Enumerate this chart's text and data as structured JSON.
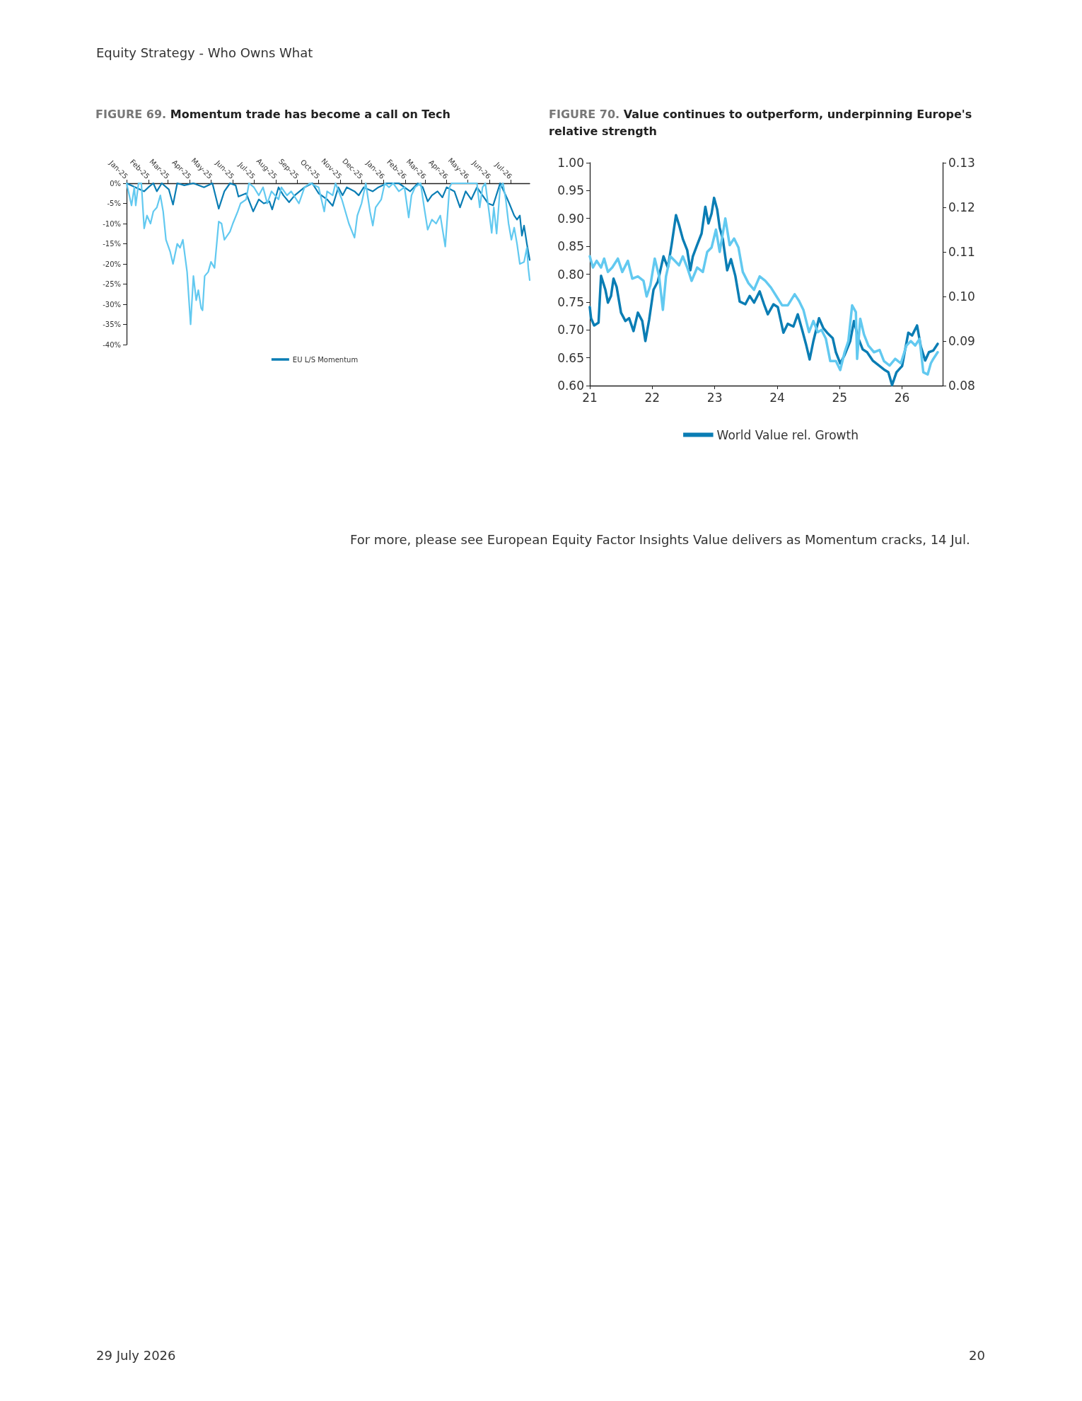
{
  "chart_data": [
    {
      "type": "line",
      "title": "FIGURE 69. Momentum trade has become a call on Tech",
      "annotations": [
        "Equity Strategy - Who Owns What"
      ],
      "xlim": [
        "2025-01-01",
        "2026-07-28"
      ],
      "xticks": [
        {
          "value": "2025-01-01",
          "label": "Jan-25"
        },
        {
          "value": "2025-02-01",
          "label": "Feb-25"
        },
        {
          "value": "2025-03-01",
          "label": "Mar-25"
        },
        {
          "value": "2025-04-01",
          "label": "Apr-25"
        },
        {
          "value": "2025-05-01",
          "label": "May-25"
        },
        {
          "value": "2025-06-01",
          "label": "Jun-25"
        },
        {
          "value": "2025-07-01",
          "label": "Jul-25"
        },
        {
          "value": "2025-08-01",
          "label": "Aug-25"
        },
        {
          "value": "2025-09-01",
          "label": "Sep-25"
        },
        {
          "value": "2025-10-01",
          "label": "Oct-25"
        },
        {
          "value": "2025-11-01",
          "label": "Nov-25"
        },
        {
          "value": "2025-12-01",
          "label": "Dec-25"
        },
        {
          "value": "2026-01-01",
          "label": "Jan-26"
        },
        {
          "value": "2026-02-01",
          "label": "Feb-26"
        },
        {
          "value": "2026-03-01",
          "label": "Mar-26"
        },
        {
          "value": "2026-04-01",
          "label": "Apr-26"
        },
        {
          "value": "2026-05-01",
          "label": "May-26"
        },
        {
          "value": "2026-06-01",
          "label": "Jun-26"
        },
        {
          "value": "2026-07-01",
          "label": "Jul-26"
        }
      ],
      "ylim": [
        -40,
        0
      ],
      "yticks": [
        {
          "value": -40,
          "label": "-40%"
        },
        {
          "value": -35,
          "label": "-35%"
        },
        {
          "value": -30,
          "label": "-30%"
        },
        {
          "value": -25,
          "label": "-25%"
        },
        {
          "value": -20,
          "label": "-20%"
        },
        {
          "value": -15,
          "label": "-15%"
        },
        {
          "value": -10,
          "label": "-10%"
        },
        {
          "value": -5,
          "label": "-5%"
        },
        {
          "value": 0,
          "label": "0%"
        }
      ],
      "grid": false,
      "legend": "bottom",
      "marker": "none",
      "line_style": "solid",
      "series": [
        {
          "name": "EU L/S Momentum",
          "color": "#0a7db4",
          "x": [
            "2025-01-01",
            "2025-01-26",
            "2025-02-01",
            "2025-02-08",
            "2025-02-13",
            "2025-02-20",
            "2025-03-02",
            "2025-03-08",
            "2025-03-14",
            "2025-03-24",
            "2025-04-06",
            "2025-04-21",
            "2025-05-03",
            "2025-05-12",
            "2025-05-20",
            "2025-05-28",
            "2025-06-05",
            "2025-06-09",
            "2025-06-20",
            "2025-06-30",
            "2025-07-08",
            "2025-07-15",
            "2025-07-23",
            "2025-07-27",
            "2025-08-05",
            "2025-08-12",
            "2025-08-20",
            "2025-08-28",
            "2025-09-11",
            "2025-09-22",
            "2025-10-01",
            "2025-10-13",
            "2025-10-21",
            "2025-10-29",
            "2025-11-04",
            "2025-11-10",
            "2025-11-21",
            "2025-11-27",
            "2025-12-04",
            "2025-12-17",
            "2025-12-25",
            "2026-01-06",
            "2026-01-23",
            "2026-02-08",
            "2026-02-19",
            "2026-02-26",
            "2026-03-05",
            "2026-03-11",
            "2026-03-19",
            "2026-03-26",
            "2026-04-01",
            "2026-04-12",
            "2026-04-20",
            "2026-04-28",
            "2026-05-06",
            "2026-05-14",
            "2026-05-22",
            "2026-05-30",
            "2026-06-06",
            "2026-06-16",
            "2026-06-24",
            "2026-06-29",
            "2026-07-06",
            "2026-07-10",
            "2026-07-14",
            "2026-07-17",
            "2026-07-20",
            "2026-07-24",
            "2026-07-28"
          ],
          "values": [
            0,
            -2,
            -1,
            0,
            -2,
            0,
            -1.5,
            -5.3,
            0,
            -0.5,
            0,
            -1,
            0,
            -6.3,
            -2,
            0,
            -0.5,
            -3.3,
            -2.5,
            -7,
            -4,
            -5,
            -4.5,
            -6.5,
            -1,
            -3,
            -4.7,
            -3,
            -1,
            0,
            -2.5,
            -4,
            -5.6,
            -1,
            -3,
            -1,
            -2,
            -3,
            -1,
            -2,
            -1,
            0,
            0,
            -2,
            0,
            -1,
            -4.5,
            -3,
            -2,
            -3.5,
            -1,
            -2,
            -6,
            -2,
            -4,
            -1,
            -3,
            -5,
            -5.5,
            0,
            -3,
            -5,
            -8,
            -9,
            -8,
            -13,
            -10.5,
            -15,
            -19
          ]
        },
        {
          "color": "#62c9f0",
          "x": [
            "2025-01-01",
            "2025-01-08",
            "2025-01-12",
            "2025-01-14",
            "2025-01-18",
            "2025-01-22",
            "2025-01-26",
            "2025-01-30",
            "2025-02-04",
            "2025-02-08",
            "2025-02-13",
            "2025-02-18",
            "2025-02-22",
            "2025-02-26",
            "2025-03-04",
            "2025-03-08",
            "2025-03-14",
            "2025-03-18",
            "2025-03-22",
            "2025-03-28",
            "2025-04-02",
            "2025-04-06",
            "2025-04-10",
            "2025-04-13",
            "2025-04-17",
            "2025-04-19",
            "2025-04-22",
            "2025-04-27",
            "2025-05-01",
            "2025-05-06",
            "2025-05-12",
            "2025-05-16",
            "2025-05-20",
            "2025-05-24",
            "2025-05-28",
            "2025-06-01",
            "2025-06-08",
            "2025-06-12",
            "2025-06-20",
            "2025-06-24",
            "2025-07-01",
            "2025-07-08",
            "2025-07-14",
            "2025-07-20",
            "2025-07-26",
            "2025-08-05",
            "2025-08-09",
            "2025-08-17",
            "2025-08-23",
            "2025-09-03",
            "2025-09-11",
            "2025-09-19",
            "2025-10-01",
            "2025-10-09",
            "2025-10-13",
            "2025-10-21",
            "2025-10-25",
            "2025-11-03",
            "2025-11-13",
            "2025-11-21",
            "2025-11-25",
            "2025-12-01",
            "2025-12-07",
            "2025-12-13",
            "2025-12-17",
            "2025-12-21",
            "2025-12-29",
            "2026-01-03",
            "2026-01-09",
            "2026-01-15",
            "2026-01-23",
            "2026-01-31",
            "2026-02-06",
            "2026-02-10",
            "2026-02-15",
            "2026-02-23",
            "2026-02-28",
            "2026-03-05",
            "2026-03-11",
            "2026-03-17",
            "2026-03-23",
            "2026-03-30",
            "2026-04-05",
            "2026-04-08",
            "2026-04-20",
            "2026-05-06",
            "2026-05-14",
            "2026-05-18",
            "2026-05-22",
            "2026-05-26",
            "2026-06-04",
            "2026-06-07",
            "2026-06-11",
            "2026-06-16",
            "2026-06-20",
            "2026-06-24",
            "2026-06-28",
            "2026-07-02",
            "2026-07-06",
            "2026-07-10",
            "2026-07-14",
            "2026-07-20",
            "2026-07-24",
            "2026-07-26",
            "2026-07-28"
          ],
          "values": [
            0,
            -5.5,
            -1,
            -5.5,
            0,
            0,
            -11.2,
            -8,
            -10,
            -7,
            -6,
            -3,
            -7,
            -14,
            -17,
            -20,
            -15,
            -16,
            -14,
            -22,
            -35,
            -23,
            -29,
            -26.5,
            -31,
            -31.5,
            -23,
            -22,
            -19.5,
            -21,
            -9.5,
            -10,
            -14,
            -13,
            -12,
            -10,
            -7,
            -5,
            -4,
            0,
            -1,
            -3,
            -1,
            -5,
            -2,
            -4,
            -1,
            -3,
            -2,
            -5,
            -1,
            0,
            -1,
            -7,
            -2,
            -3,
            0,
            -4,
            -10,
            -13.5,
            -8,
            -5,
            0,
            -7,
            -10.5,
            -6,
            -4,
            0,
            -1,
            0,
            -2,
            -1,
            -8.5,
            -3,
            -1,
            0,
            -6,
            -11.5,
            -9,
            -10,
            -8,
            -15.7,
            -1,
            0,
            0,
            0,
            0,
            -6,
            -1,
            0,
            -12.3,
            -6,
            -12.5,
            -1,
            0,
            -4,
            -10,
            -14,
            -11,
            -15,
            -20,
            -19.5,
            -16,
            -21,
            -24
          ]
        }
      ]
    },
    {
      "type": "line",
      "title": "FIGURE 70. Value continues to outperform, underpinning Europe's relative strength",
      "annotations": [
        "For more, please see European Equity Factor Insights Value delivers as Momentum cracks, 14 Jul.",
        "29 July 2026",
        "20"
      ],
      "xlim": [
        2021,
        2026.65
      ],
      "xticks": [
        {
          "value": 2021,
          "label": "21"
        },
        {
          "value": 2022,
          "label": "22"
        },
        {
          "value": 2023,
          "label": "23"
        },
        {
          "value": 2024,
          "label": "24"
        },
        {
          "value": 2025,
          "label": "25"
        },
        {
          "value": 2026,
          "label": "26"
        }
      ],
      "ylim": [
        0.6,
        1.0
      ],
      "yticks": [
        {
          "value": 0.6,
          "label": "0.60"
        },
        {
          "value": 0.65,
          "label": "0.65"
        },
        {
          "value": 0.7,
          "label": "0.70"
        },
        {
          "value": 0.75,
          "label": "0.75"
        },
        {
          "value": 0.8,
          "label": "0.80"
        },
        {
          "value": 0.85,
          "label": "0.85"
        },
        {
          "value": 0.9,
          "label": "0.90"
        },
        {
          "value": 0.95,
          "label": "0.95"
        },
        {
          "value": 1.0,
          "label": "1.00"
        }
      ],
      "y2lim": [
        0.08,
        0.13
      ],
      "y2ticks": [
        {
          "value": 0.08,
          "label": "0.08"
        },
        {
          "value": 0.09,
          "label": "0.09"
        },
        {
          "value": 0.1,
          "label": "0.10"
        },
        {
          "value": 0.11,
          "label": "0.11"
        },
        {
          "value": 0.12,
          "label": "0.12"
        },
        {
          "value": 0.13,
          "label": "0.13"
        }
      ],
      "grid": false,
      "legend": "bottom",
      "marker": "none",
      "line_style": "solid",
      "series": [
        {
          "name": "World Value rel. Growth",
          "color": "#0a7db4",
          "x": [
            2021,
            2021.02,
            2021.07,
            2021.14,
            2021.18,
            2021.25,
            2021.29,
            2021.34,
            2021.38,
            2021.43,
            2021.5,
            2021.57,
            2021.63,
            2021.7,
            2021.77,
            2021.84,
            2021.89,
            2021.95,
            2022.02,
            2022.09,
            2022.18,
            2022.25,
            2022.31,
            2022.38,
            2022.43,
            2022.49,
            2022.56,
            2022.61,
            2022.65,
            2022.72,
            2022.79,
            2022.85,
            2022.9,
            2022.95,
            2022.99,
            2023.04,
            2023.08,
            2023.13,
            2023.2,
            2023.26,
            2023.33,
            2023.4,
            2023.49,
            2023.56,
            2023.63,
            2023.72,
            2023.79,
            2023.85,
            2023.94,
            2024.01,
            2024.1,
            2024.17,
            2024.26,
            2024.33,
            2024.4,
            2024.46,
            2024.52,
            2024.58,
            2024.67,
            2024.74,
            2024.8,
            2024.89,
            2024.94,
            2025.01,
            2025.08,
            2025.17,
            2025.23,
            2025.3,
            2025.37,
            2025.44,
            2025.53,
            2025.62,
            2025.71,
            2025.78,
            2025.84,
            2025.91,
            2026,
            2026.1,
            2026.16,
            2026.24,
            2026.3,
            2026.37,
            2026.43,
            2026.5,
            2026.57
          ],
          "values": [
            0.741,
            0.721,
            0.708,
            0.713,
            0.797,
            0.772,
            0.749,
            0.761,
            0.792,
            0.777,
            0.731,
            0.716,
            0.721,
            0.698,
            0.731,
            0.716,
            0.68,
            0.718,
            0.772,
            0.787,
            0.832,
            0.812,
            0.853,
            0.906,
            0.888,
            0.863,
            0.843,
            0.807,
            0.832,
            0.853,
            0.873,
            0.921,
            0.891,
            0.909,
            0.937,
            0.916,
            0.883,
            0.863,
            0.807,
            0.827,
            0.797,
            0.751,
            0.746,
            0.761,
            0.749,
            0.769,
            0.746,
            0.728,
            0.746,
            0.741,
            0.695,
            0.711,
            0.706,
            0.728,
            0.7,
            0.675,
            0.647,
            0.68,
            0.721,
            0.703,
            0.695,
            0.685,
            0.66,
            0.64,
            0.655,
            0.68,
            0.716,
            0.685,
            0.665,
            0.66,
            0.645,
            0.637,
            0.629,
            0.624,
            0.601,
            0.624,
            0.635,
            0.695,
            0.69,
            0.708,
            0.67,
            0.645,
            0.66,
            0.663,
            0.675
          ]
        },
        {
          "color": "#62c9f0",
          "axis": "y2",
          "x": [
            2021,
            2021.05,
            2021.11,
            2021.18,
            2021.23,
            2021.29,
            2021.36,
            2021.45,
            2021.52,
            2021.61,
            2021.68,
            2021.77,
            2021.86,
            2021.91,
            2021.97,
            2022.04,
            2022.11,
            2022.17,
            2022.22,
            2022.29,
            2022.36,
            2022.43,
            2022.49,
            2022.56,
            2022.63,
            2022.72,
            2022.81,
            2022.88,
            2022.95,
            2023.02,
            2023.08,
            2023.17,
            2023.24,
            2023.31,
            2023.38,
            2023.45,
            2023.54,
            2023.63,
            2023.72,
            2023.81,
            2023.9,
            2023.99,
            2024.08,
            2024.17,
            2024.28,
            2024.35,
            2024.42,
            2024.51,
            2024.58,
            2024.65,
            2024.71,
            2024.78,
            2024.85,
            2024.94,
            2025.01,
            2025.08,
            2025.14,
            2025.2,
            2025.26,
            2025.28,
            2025.33,
            2025.39,
            2025.46,
            2025.55,
            2025.64,
            2025.71,
            2025.8,
            2025.89,
            2025.98,
            2026.07,
            2026.14,
            2026.21,
            2026.28,
            2026.34,
            2026.41,
            2026.46,
            2026.5,
            2026.57
          ],
          "values": [
            0.109,
            0.1065,
            0.108,
            0.1065,
            0.1085,
            0.1055,
            0.1065,
            0.1085,
            0.1055,
            0.108,
            0.104,
            0.1045,
            0.1035,
            0.1,
            0.1025,
            0.1085,
            0.1045,
            0.097,
            0.1045,
            0.109,
            0.108,
            0.107,
            0.109,
            0.1065,
            0.1035,
            0.1065,
            0.1055,
            0.11,
            0.111,
            0.115,
            0.11,
            0.1175,
            0.1115,
            0.113,
            0.111,
            0.1055,
            0.103,
            0.1015,
            0.1045,
            0.1035,
            0.102,
            0.1,
            0.098,
            0.098,
            0.1005,
            0.099,
            0.097,
            0.092,
            0.0945,
            0.092,
            0.0925,
            0.0905,
            0.0855,
            0.0855,
            0.0835,
            0.0875,
            0.09,
            0.098,
            0.0965,
            0.086,
            0.095,
            0.0915,
            0.089,
            0.0875,
            0.088,
            0.0855,
            0.0845,
            0.086,
            0.085,
            0.089,
            0.09,
            0.089,
            0.0905,
            0.083,
            0.0825,
            0.085,
            0.086,
            0.0875
          ]
        }
      ]
    }
  ]
}
